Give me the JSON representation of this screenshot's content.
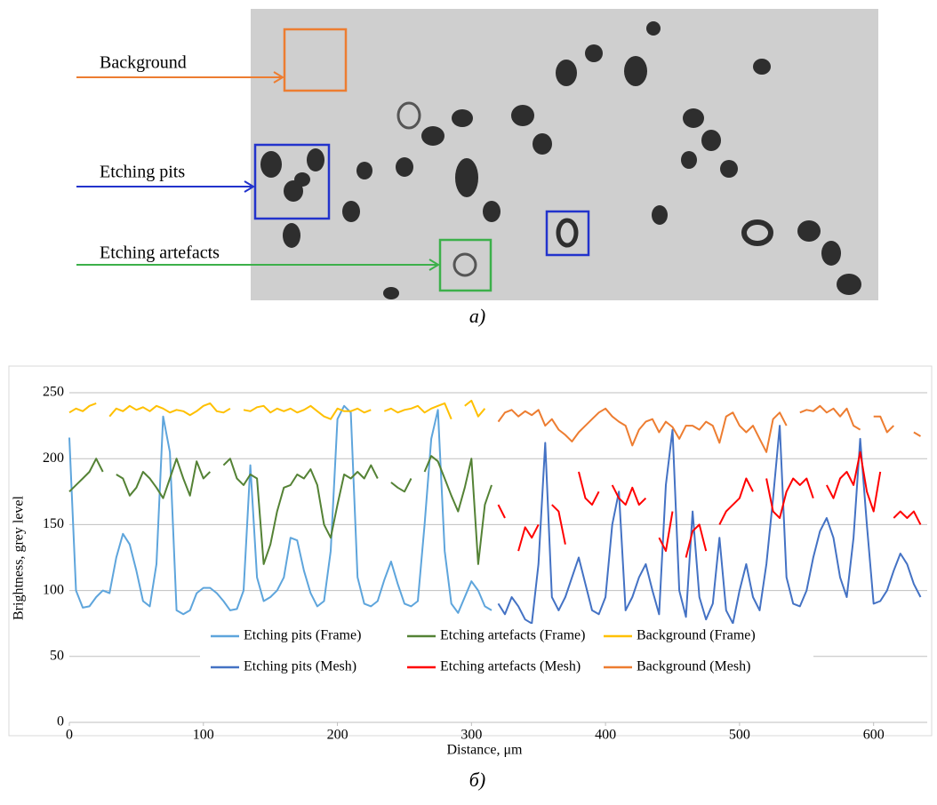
{
  "panel_a": {
    "labels": [
      "Background",
      "Etching pits",
      "Etching artefacts"
    ],
    "caption": "а)"
  },
  "panel_b_caption": "б)",
  "chart_data": {
    "type": "line",
    "xlabel": "Distance, μm",
    "ylabel": "Brightness, grey level",
    "xlim": [
      0,
      640
    ],
    "ylim": [
      0,
      250
    ],
    "xticks": [
      0,
      100,
      200,
      300,
      400,
      500,
      600
    ],
    "yticks": [
      0,
      50,
      100,
      150,
      200,
      250
    ],
    "grid": true,
    "series": [
      {
        "name": "Etching pits (Frame)",
        "color": "#5ea5dc",
        "x": [
          0,
          5,
          10,
          15,
          20,
          25,
          30,
          35,
          40,
          45,
          50,
          55,
          60,
          65,
          70,
          75,
          80,
          85,
          90,
          95,
          100,
          105,
          110,
          115,
          120,
          125,
          130,
          135,
          140,
          145,
          150,
          155,
          160,
          165,
          170,
          175,
          180,
          185,
          190,
          195,
          200,
          205,
          210,
          215,
          220,
          225,
          230,
          235,
          240,
          245,
          250,
          255,
          260,
          265,
          270,
          275,
          280,
          285,
          290,
          295,
          300,
          305,
          310,
          315
        ],
        "values": [
          216,
          100,
          87,
          88,
          95,
          100,
          98,
          125,
          143,
          135,
          115,
          92,
          88,
          120,
          232,
          205,
          85,
          82,
          85,
          98,
          102,
          102,
          98,
          92,
          85,
          86,
          100,
          195,
          110,
          92,
          95,
          100,
          110,
          140,
          138,
          115,
          98,
          88,
          92,
          130,
          230,
          240,
          235,
          110,
          90,
          88,
          92,
          108,
          122,
          105,
          90,
          88,
          92,
          150,
          215,
          237,
          130,
          90,
          83,
          95,
          107,
          100,
          88,
          85
        ]
      },
      {
        "name": "Etching artefacts (Frame)",
        "color": "#548235",
        "x": [
          0,
          5,
          10,
          15,
          20,
          25,
          30,
          35,
          40,
          45,
          50,
          55,
          60,
          65,
          70,
          75,
          80,
          85,
          90,
          95,
          100,
          105,
          110,
          115,
          120,
          125,
          130,
          135,
          140,
          145,
          150,
          155,
          160,
          165,
          170,
          175,
          180,
          185,
          190,
          195,
          200,
          205,
          210,
          215,
          220,
          225,
          230,
          235,
          240,
          245,
          250,
          255,
          260,
          265,
          270,
          275,
          280,
          285,
          290,
          295,
          300,
          305,
          310,
          315
        ],
        "values": [
          175,
          180,
          185,
          190,
          200,
          190,
          null,
          188,
          185,
          172,
          178,
          190,
          185,
          178,
          170,
          185,
          200,
          185,
          172,
          198,
          185,
          190,
          null,
          195,
          200,
          185,
          180,
          188,
          185,
          120,
          135,
          160,
          178,
          180,
          188,
          185,
          192,
          180,
          150,
          140,
          165,
          188,
          185,
          190,
          185,
          195,
          185,
          null,
          182,
          178,
          175,
          185,
          null,
          190,
          202,
          198,
          185,
          172,
          160,
          178,
          200,
          120,
          165,
          180
        ]
      },
      {
        "name": "Background (Frame)",
        "color": "#ffc000",
        "x": [
          0,
          5,
          10,
          15,
          20,
          25,
          30,
          35,
          40,
          45,
          50,
          55,
          60,
          65,
          70,
          75,
          80,
          85,
          90,
          95,
          100,
          105,
          110,
          115,
          120,
          125,
          130,
          135,
          140,
          145,
          150,
          155,
          160,
          165,
          170,
          175,
          180,
          185,
          190,
          195,
          200,
          205,
          210,
          215,
          220,
          225,
          230,
          235,
          240,
          245,
          250,
          255,
          260,
          265,
          270,
          275,
          280,
          285,
          290,
          295,
          300,
          305,
          310,
          315
        ],
        "values": [
          235,
          238,
          236,
          240,
          242,
          null,
          232,
          238,
          236,
          240,
          237,
          239,
          236,
          240,
          238,
          235,
          237,
          236,
          233,
          236,
          240,
          242,
          236,
          235,
          238,
          null,
          237,
          236,
          239,
          240,
          235,
          238,
          236,
          238,
          235,
          237,
          240,
          236,
          232,
          230,
          238,
          236,
          236,
          238,
          235,
          237,
          null,
          236,
          238,
          235,
          237,
          238,
          240,
          235,
          238,
          240,
          242,
          230,
          null,
          240,
          244,
          232,
          238,
          null
        ]
      },
      {
        "name": "Etching pits (Mesh)",
        "color": "#4472c4",
        "x": [
          320,
          325,
          330,
          335,
          340,
          345,
          350,
          355,
          360,
          365,
          370,
          375,
          380,
          385,
          390,
          395,
          400,
          405,
          410,
          415,
          420,
          425,
          430,
          435,
          440,
          445,
          450,
          455,
          460,
          465,
          470,
          475,
          480,
          485,
          490,
          495,
          500,
          505,
          510,
          515,
          520,
          525,
          530,
          535,
          540,
          545,
          550,
          555,
          560,
          565,
          570,
          575,
          580,
          585,
          590,
          595,
          600,
          605,
          610,
          615,
          620,
          625,
          630,
          635
        ],
        "values": [
          90,
          82,
          95,
          88,
          78,
          75,
          120,
          212,
          95,
          85,
          95,
          110,
          125,
          105,
          85,
          82,
          95,
          150,
          175,
          85,
          95,
          110,
          120,
          100,
          82,
          180,
          222,
          100,
          80,
          160,
          95,
          78,
          90,
          140,
          85,
          75,
          100,
          120,
          95,
          85,
          120,
          170,
          225,
          110,
          90,
          88,
          100,
          125,
          145,
          155,
          140,
          110,
          95,
          140,
          215,
          150,
          90,
          92,
          100,
          115,
          128,
          120,
          105,
          95
        ]
      },
      {
        "name": "Etching artefacts (Mesh)",
        "color": "#ff0000",
        "x": [
          320,
          325,
          330,
          335,
          340,
          345,
          350,
          355,
          360,
          365,
          370,
          375,
          380,
          385,
          390,
          395,
          400,
          405,
          410,
          415,
          420,
          425,
          430,
          435,
          440,
          445,
          450,
          455,
          460,
          465,
          470,
          475,
          480,
          485,
          490,
          495,
          500,
          505,
          510,
          515,
          520,
          525,
          530,
          535,
          540,
          545,
          550,
          555,
          560,
          565,
          570,
          575,
          580,
          585,
          590,
          595,
          600,
          605,
          610,
          615,
          620,
          625,
          630,
          635
        ],
        "values": [
          165,
          155,
          null,
          130,
          148,
          140,
          150,
          null,
          165,
          160,
          135,
          null,
          190,
          170,
          165,
          175,
          null,
          180,
          170,
          165,
          178,
          165,
          170,
          null,
          140,
          130,
          160,
          null,
          125,
          145,
          150,
          130,
          null,
          150,
          160,
          165,
          170,
          185,
          175,
          null,
          185,
          160,
          155,
          175,
          185,
          180,
          185,
          170,
          null,
          180,
          170,
          185,
          190,
          180,
          205,
          175,
          160,
          190,
          null,
          155,
          160,
          155,
          160,
          150
        ]
      },
      {
        "name": "Background (Mesh)",
        "color": "#ed7d31",
        "x": [
          320,
          325,
          330,
          335,
          340,
          345,
          350,
          355,
          360,
          365,
          370,
          375,
          380,
          385,
          390,
          395,
          400,
          405,
          410,
          415,
          420,
          425,
          430,
          435,
          440,
          445,
          450,
          455,
          460,
          465,
          470,
          475,
          480,
          485,
          490,
          495,
          500,
          505,
          510,
          515,
          520,
          525,
          530,
          535,
          540,
          545,
          550,
          555,
          560,
          565,
          570,
          575,
          580,
          585,
          590,
          595,
          600,
          605,
          610,
          615,
          620,
          625,
          630,
          635
        ],
        "values": [
          228,
          235,
          237,
          232,
          236,
          233,
          237,
          225,
          230,
          222,
          218,
          213,
          220,
          225,
          230,
          235,
          238,
          232,
          228,
          225,
          210,
          222,
          228,
          230,
          220,
          228,
          224,
          215,
          225,
          225,
          222,
          228,
          225,
          212,
          232,
          235,
          225,
          220,
          225,
          215,
          205,
          230,
          235,
          225,
          null,
          235,
          237,
          236,
          240,
          235,
          238,
          232,
          238,
          225,
          222,
          null,
          232,
          232,
          220,
          225,
          null,
          null,
          220,
          217
        ]
      }
    ]
  }
}
